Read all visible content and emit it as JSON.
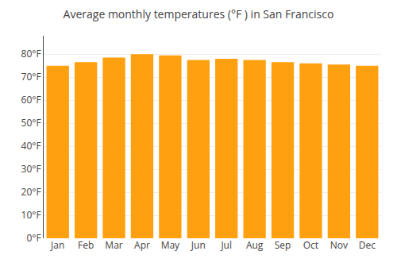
{
  "chart_data": {
    "type": "bar",
    "title": "Average monthly temperatures (°F ) in San Francisco",
    "categories": [
      "Jan",
      "Feb",
      "Mar",
      "Apr",
      "May",
      "Jun",
      "Jul",
      "Aug",
      "Sep",
      "Oct",
      "Nov",
      "Dec"
    ],
    "values": [
      75.0,
      76.5,
      78.5,
      80.0,
      79.5,
      77.5,
      78.0,
      77.5,
      76.5,
      76.0,
      75.5,
      75.0
    ],
    "color": "#FFA010",
    "ylim": [
      0,
      88
    ],
    "yticks": [
      {
        "value": 0,
        "label": "0°F"
      },
      {
        "value": 10,
        "label": "10°F"
      },
      {
        "value": 20,
        "label": "20°F"
      },
      {
        "value": 30,
        "label": "30°F"
      },
      {
        "value": 40,
        "label": "40°F"
      },
      {
        "value": 50,
        "label": "50°F"
      },
      {
        "value": 60,
        "label": "60°F"
      },
      {
        "value": 70,
        "label": "70°F"
      },
      {
        "value": 80,
        "label": "80°F"
      }
    ],
    "grid": true
  }
}
